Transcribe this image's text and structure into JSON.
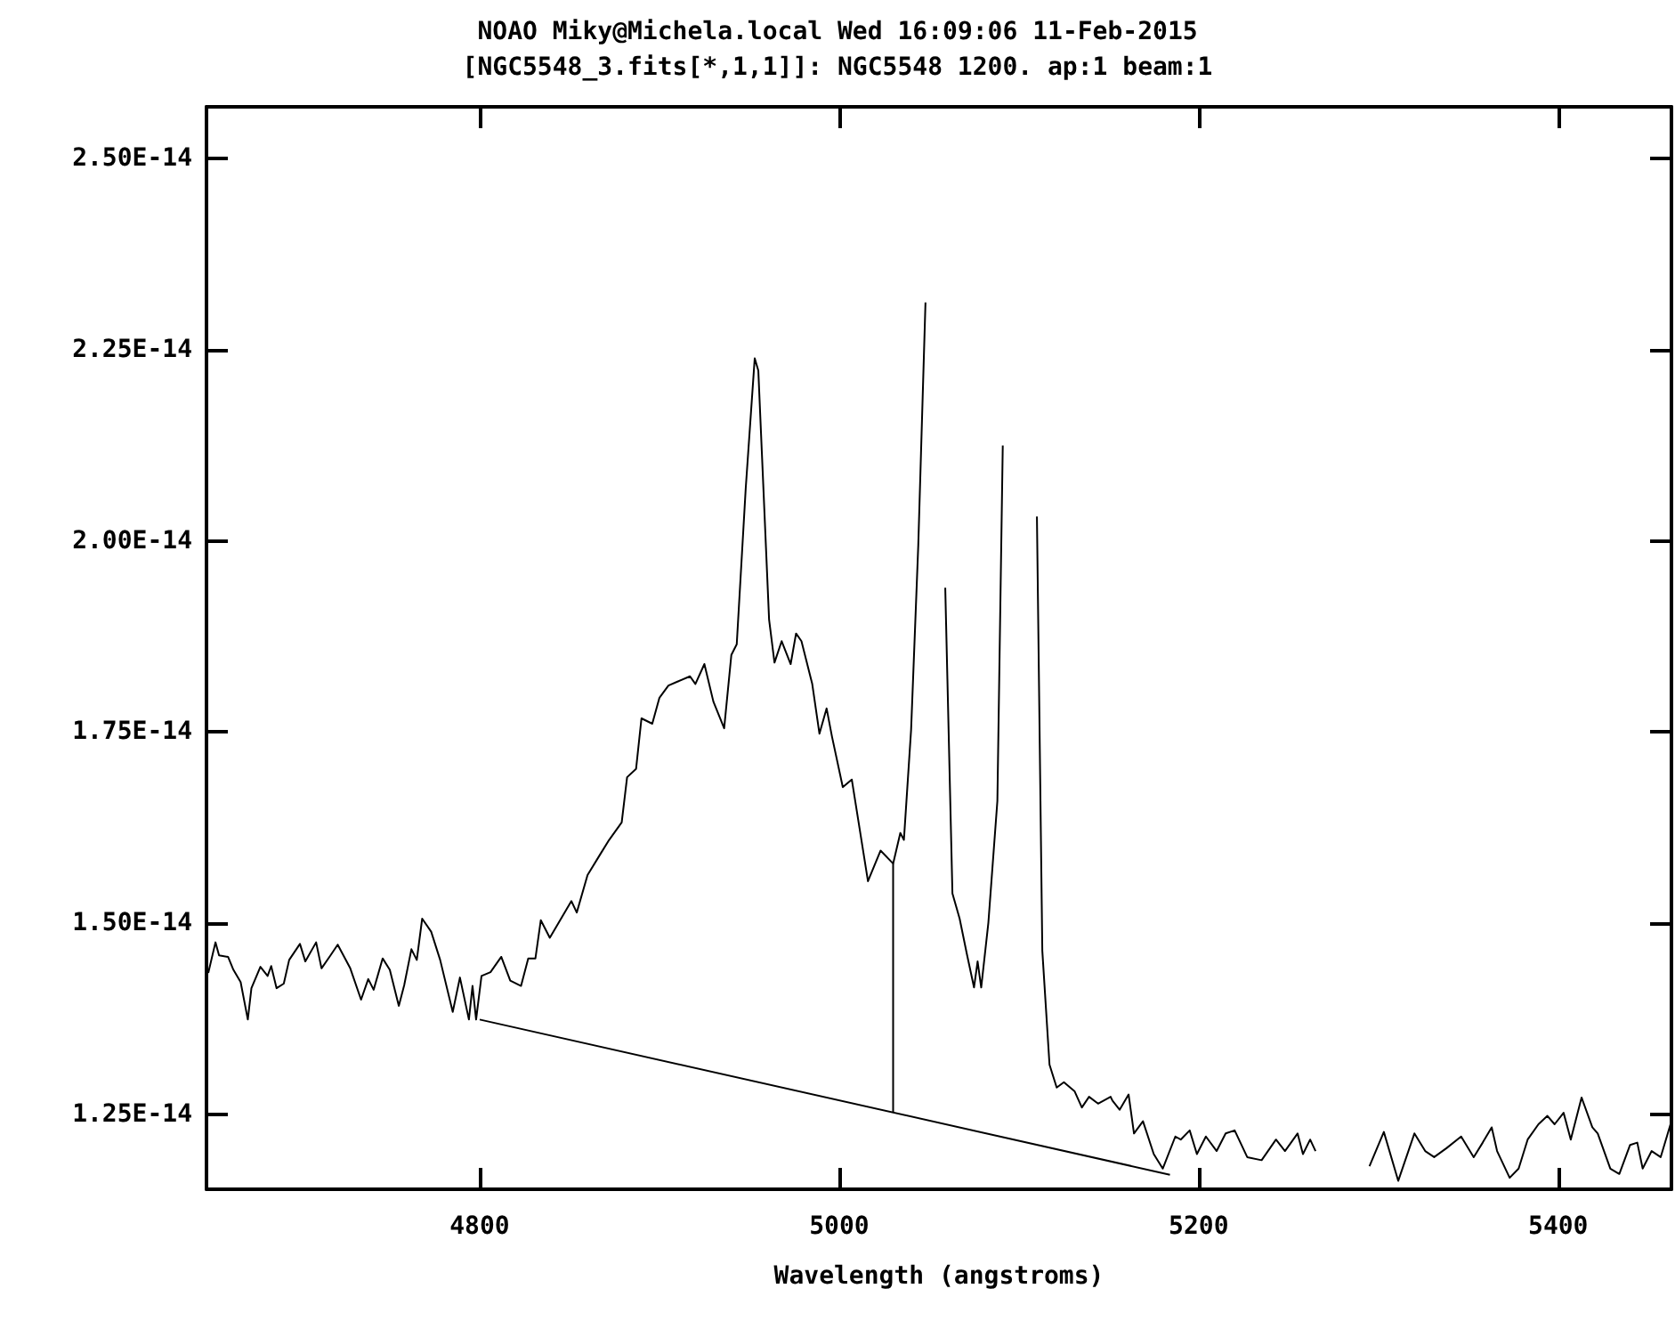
{
  "chart_data": {
    "type": "line",
    "title": "NOAO Miky@Michela.local Wed 16:09:06 11-Feb-2015",
    "subtitle": "[NGC5548_3.fits[*,1,1]]: NGC5548 1200. ap:1 beam:1",
    "xlabel": "Wavelength (angstroms)",
    "xlim": [
      4648,
      5463
    ],
    "xticks": [
      4800,
      5000,
      5200,
      5400
    ],
    "ylim": [
      1.152e-14,
      2.568e-14
    ],
    "yticks": [
      {
        "value": 1.25e-14,
        "label": "1.25E-14"
      },
      {
        "value": 1.5e-14,
        "label": "1.50E-14"
      },
      {
        "value": 1.75e-14,
        "label": "1.75E-14"
      },
      {
        "value": 2e-14,
        "label": "2.00E-14"
      },
      {
        "value": 2.25e-14,
        "label": "2.25E-14"
      },
      {
        "value": 2.5e-14,
        "label": "2.50E-14"
      }
    ],
    "series": [
      {
        "color": "#000000",
        "x": [
          4649,
          4653,
          4655,
          4660,
          4663,
          4667,
          4671,
          4673,
          4678,
          4682,
          4684,
          4687,
          4691,
          4694,
          4700,
          4703,
          4709,
          4712,
          4717,
          4721,
          4728,
          4734,
          4738,
          4741,
          4746,
          4750,
          4755,
          4758,
          4762,
          4765,
          4768,
          4773,
          4778,
          4785,
          4789,
          4794,
          4796,
          4798,
          4801,
          4806,
          4812,
          4817,
          4823,
          4827,
          4831,
          4834,
          4839,
          4851,
          4854,
          4860,
          4867,
          4872,
          4879,
          4882,
          4887,
          4890,
          4896,
          4900,
          4905,
          4910,
          4917,
          4920,
          4925,
          4930,
          4936,
          4940,
          4943,
          4948,
          4953,
          4955,
          4961,
          4964,
          4968,
          4973,
          4976,
          4979,
          4985,
          4989,
          4993,
          4996,
          5002,
          5007,
          5016,
          5023,
          5030,
          5034,
          5036,
          5040,
          5044,
          5048,
          5050,
          5052,
          5055,
          5059,
          5063,
          5067,
          5071,
          5075,
          5077,
          5079,
          5083,
          5088,
          5091,
          5094,
          5100,
          5108,
          5110,
          5113,
          5117,
          5121,
          5125,
          5131,
          5135,
          5139,
          5144,
          5151,
          5152,
          5156,
          5161,
          5164,
          5169,
          5175,
          5180,
          5187,
          5190,
          5195,
          5199,
          5204,
          5210,
          5215,
          5220,
          5227,
          5235,
          5243,
          5248,
          5255,
          5258,
          5262,
          5265,
          5270,
          5275,
          5280,
          5281,
          5283,
          5287,
          5291,
          5295,
          5303,
          5311,
          5320,
          5326,
          5331,
          5338,
          5346,
          5353,
          5358,
          5363,
          5366,
          5373,
          5378,
          5383,
          5389,
          5394,
          5398,
          5403,
          5407,
          5413,
          5419,
          5422,
          5429,
          5434,
          5440,
          5444,
          5447,
          5452,
          5457,
          5463
        ],
        "values": [
          1.435e-14,
          1.475e-14,
          1.458e-14,
          1.456e-14,
          1.439e-14,
          1.423e-14,
          1.374e-14,
          1.415e-14,
          1.443e-14,
          1.431e-14,
          1.444e-14,
          1.415e-14,
          1.421e-14,
          1.452e-14,
          1.473e-14,
          1.45e-14,
          1.475e-14,
          1.441e-14,
          1.458e-14,
          1.472e-14,
          1.441e-14,
          1.4e-14,
          1.427e-14,
          1.413e-14,
          1.454e-14,
          1.439e-14,
          1.392e-14,
          1.419e-14,
          1.466e-14,
          1.452e-14,
          1.506e-14,
          1.489e-14,
          1.452e-14,
          1.384e-14,
          1.429e-14,
          1.374e-14,
          1.418e-14,
          1.374e-14,
          1.431e-14,
          1.436e-14,
          1.456e-14,
          1.425e-14,
          1.418e-14,
          1.454e-14,
          1.454e-14,
          1.504e-14,
          1.481e-14,
          1.529e-14,
          1.514e-14,
          1.563e-14,
          1.59e-14,
          1.609e-14,
          1.632e-14,
          1.691e-14,
          1.702e-14,
          1.768e-14,
          1.761e-14,
          1.795e-14,
          1.811e-14,
          1.816e-14,
          1.823e-14,
          1.813e-14,
          1.839e-14,
          1.79e-14,
          1.755e-14,
          1.851e-14,
          1.865e-14,
          2.069e-14,
          2.239e-14,
          2.223e-14,
          1.897e-14,
          1.841e-14,
          1.869e-14,
          1.839e-14,
          1.879e-14,
          1.869e-14,
          1.813e-14,
          1.748e-14,
          1.781e-14,
          1.744e-14,
          1.678e-14,
          1.688e-14,
          1.555e-14,
          1.595e-14,
          1.578e-14,
          1.618e-14,
          1.609e-14,
          1.753e-14,
          1.995e-14,
          2.312e-14,
          null,
          null,
          null,
          1.939e-14,
          1.539e-14,
          1.506e-14,
          1.46e-14,
          1.416e-14,
          1.45e-14,
          1.416e-14,
          1.501e-14,
          1.66e-14,
          2.125e-14,
          null,
          null,
          null,
          2.032e-14,
          1.464e-14,
          1.315e-14,
          1.285e-14,
          1.292e-14,
          1.28e-14,
          1.259e-14,
          1.273e-14,
          1.264e-14,
          1.273e-14,
          1.268e-14,
          1.256e-14,
          1.276e-14,
          1.225e-14,
          1.241e-14,
          1.198e-14,
          1.179e-14,
          1.221e-14,
          1.217e-14,
          1.229e-14,
          1.198e-14,
          1.221e-14,
          1.202e-14,
          1.225e-14,
          1.229e-14,
          1.194e-14,
          1.19e-14,
          1.217e-14,
          1.202e-14,
          1.225e-14,
          1.198e-14,
          1.217e-14,
          1.202e-14,
          null,
          null,
          null,
          null,
          null,
          null,
          null,
          1.182e-14,
          1.227e-14,
          1.163e-14,
          1.225e-14,
          1.202e-14,
          1.194e-14,
          1.206e-14,
          1.221e-14,
          1.194e-14,
          1.213e-14,
          1.233e-14,
          1.202e-14,
          1.167e-14,
          1.179e-14,
          1.217e-14,
          1.237e-14,
          1.248e-14,
          1.237e-14,
          1.252e-14,
          1.217e-14,
          1.272e-14,
          1.233e-14,
          1.225e-14,
          1.179e-14,
          1.172e-14,
          1.21e-14,
          1.213e-14,
          1.179e-14,
          1.202e-14,
          1.194e-14,
          1.241e-14
        ]
      },
      {
        "type": "line",
        "color": "#000000",
        "x": [
          4800,
          5184
        ],
        "values": [
          1.374e-14,
          1.171e-14
        ]
      },
      {
        "type": "line",
        "color": "#000000",
        "x": [
          5030,
          5030
        ],
        "values": [
          1.252e-14,
          1.578e-14
        ]
      }
    ]
  }
}
